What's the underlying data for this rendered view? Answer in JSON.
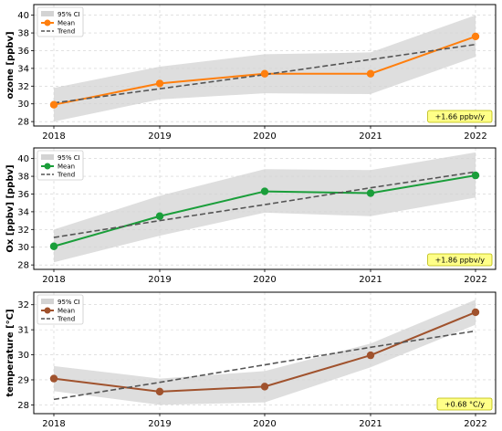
{
  "chart_data": [
    {
      "type": "line",
      "x": [
        "2018",
        "2019",
        "2020",
        "2021",
        "2022"
      ],
      "ylabel": "ozone [ppbv]",
      "ylim": [
        27.5,
        41.2
      ],
      "yticks": [
        28,
        30,
        32,
        34,
        36,
        38,
        40
      ],
      "series": [
        {
          "name": "Mean",
          "color": "#ff7f0e",
          "values": [
            29.9,
            32.3,
            33.4,
            33.4,
            37.6
          ]
        },
        {
          "name": "Trend",
          "color": "#555555",
          "style": "dashed",
          "values": [
            30.1,
            31.7,
            33.3,
            35.0,
            36.7
          ]
        },
        {
          "name": "95% CI",
          "color": "#cccccc",
          "lower": [
            28.0,
            30.5,
            31.2,
            31.1,
            35.3
          ],
          "upper": [
            31.8,
            34.2,
            35.6,
            35.8,
            40.0
          ]
        }
      ],
      "annotation": "+1.66 ppbv/y",
      "legend": [
        "95% CI",
        "Mean",
        "Trend"
      ],
      "legend_position": "upper left",
      "grid": true
    },
    {
      "type": "line",
      "x": [
        "2018",
        "2019",
        "2020",
        "2021",
        "2022"
      ],
      "ylabel": "Ox [ppbv] [ppbv]",
      "ylim": [
        27.5,
        41.2
      ],
      "yticks": [
        28,
        30,
        32,
        34,
        36,
        38,
        40
      ],
      "series": [
        {
          "name": "Mean",
          "color": "#1a9e3a",
          "values": [
            30.1,
            33.5,
            36.3,
            36.1,
            38.1
          ]
        },
        {
          "name": "Trend",
          "color": "#555555",
          "style": "dashed",
          "values": [
            31.1,
            33.0,
            34.8,
            36.7,
            38.5
          ]
        },
        {
          "name": "95% CI",
          "color": "#cccccc",
          "lower": [
            28.3,
            31.3,
            33.9,
            33.5,
            35.6
          ],
          "upper": [
            32.0,
            35.8,
            38.8,
            38.7,
            40.7
          ]
        }
      ],
      "annotation": "+1.86 ppbv/y",
      "legend": [
        "95% CI",
        "Mean",
        "Trend"
      ],
      "legend_position": "upper left",
      "grid": true
    },
    {
      "type": "line",
      "x": [
        "2018",
        "2019",
        "2020",
        "2021",
        "2022"
      ],
      "ylabel": "temperature [°C]",
      "ylim": [
        27.65,
        32.5
      ],
      "yticks": [
        28,
        29,
        30,
        31,
        32
      ],
      "series": [
        {
          "name": "Mean",
          "color": "#a0522d",
          "values": [
            29.05,
            28.53,
            28.73,
            29.98,
            31.7
          ]
        },
        {
          "name": "Trend",
          "color": "#555555",
          "style": "dashed",
          "values": [
            28.22,
            28.9,
            29.6,
            30.3,
            30.95
          ]
        },
        {
          "name": "95% CI",
          "color": "#cccccc",
          "lower": [
            28.55,
            28.0,
            28.1,
            29.5,
            31.2
          ],
          "upper": [
            29.55,
            29.05,
            29.35,
            30.45,
            32.2
          ]
        }
      ],
      "annotation": "+0.68 °C/y",
      "legend": [
        "95% CI",
        "Mean",
        "Trend"
      ],
      "legend_position": "upper left",
      "grid": true
    }
  ],
  "colors": {
    "ci_fill": "#d3d3d3",
    "annotation_bg": "#ffff88",
    "annotation_border": "#b8b800",
    "grid": "#cfcfcf"
  }
}
